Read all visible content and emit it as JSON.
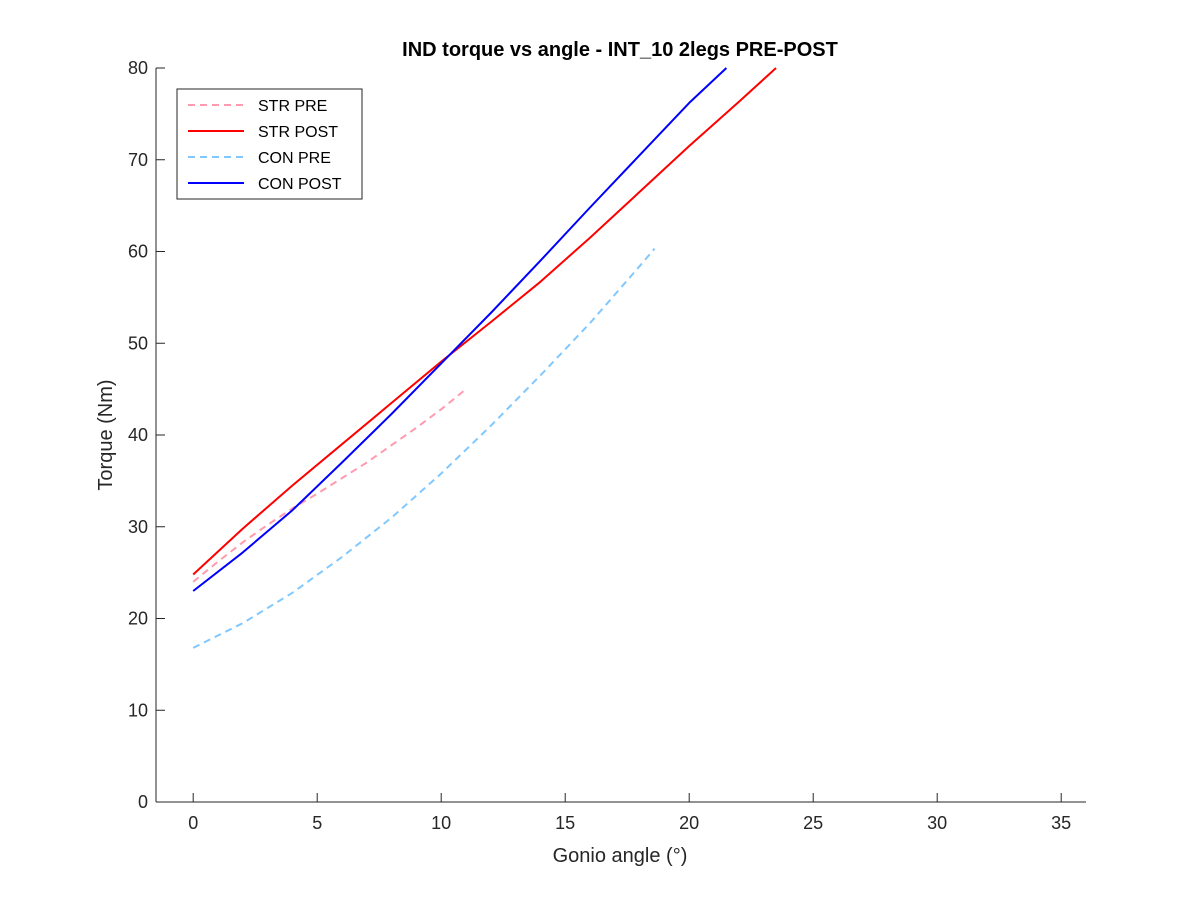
{
  "chart_data": {
    "type": "line",
    "title": "IND torque vs angle - INT_10 2legs PRE-POST",
    "xlabel": "Gonio angle (°)",
    "ylabel": "Torque (Nm)",
    "xlim": [
      -1.5,
      36
    ],
    "ylim": [
      0,
      80
    ],
    "xticks": [
      0,
      5,
      10,
      15,
      20,
      25,
      30,
      35
    ],
    "yticks": [
      0,
      10,
      20,
      30,
      40,
      50,
      60,
      70,
      80
    ],
    "xtick_labels": [
      "0",
      "5",
      "10",
      "15",
      "20",
      "25",
      "30",
      "35"
    ],
    "ytick_labels": [
      "0",
      "10",
      "20",
      "30",
      "40",
      "50",
      "60",
      "70",
      "80"
    ],
    "grid": false,
    "legend_position": "top-left",
    "series": [
      {
        "name": "STR PRE",
        "color": "#ff9aaf",
        "dash": "dashed",
        "x": [
          0,
          1,
          2,
          3,
          4,
          5,
          6,
          7,
          8,
          9,
          10,
          11
        ],
        "y": [
          24.0,
          26.2,
          28.3,
          30.2,
          32.0,
          33.6,
          35.3,
          37.0,
          38.9,
          40.8,
          42.8,
          45.0
        ]
      },
      {
        "name": "STR POST",
        "color": "#ff0000",
        "dash": "solid",
        "x": [
          0,
          2,
          4,
          6,
          8,
          10,
          12,
          14,
          16,
          18,
          20,
          22,
          23.5
        ],
        "y": [
          24.8,
          29.8,
          34.5,
          39.0,
          43.5,
          48.0,
          52.3,
          56.7,
          61.5,
          66.5,
          71.5,
          76.3,
          80.0
        ]
      },
      {
        "name": "CON PRE",
        "color": "#80c8ff",
        "dash": "dashed",
        "x": [
          0,
          2,
          4,
          6,
          8,
          10,
          12,
          14,
          16,
          18,
          18.6
        ],
        "y": [
          16.8,
          19.5,
          22.8,
          26.7,
          31.0,
          35.8,
          41.0,
          46.5,
          52.2,
          58.4,
          60.3
        ]
      },
      {
        "name": "CON POST",
        "color": "#0000ff",
        "dash": "solid",
        "x": [
          0,
          2,
          4,
          6,
          8,
          10,
          12,
          14,
          16,
          18,
          20,
          21.5
        ],
        "y": [
          23.0,
          27.2,
          31.8,
          37.0,
          42.3,
          47.8,
          53.3,
          59.0,
          64.8,
          70.5,
          76.2,
          80.0
        ]
      }
    ]
  }
}
